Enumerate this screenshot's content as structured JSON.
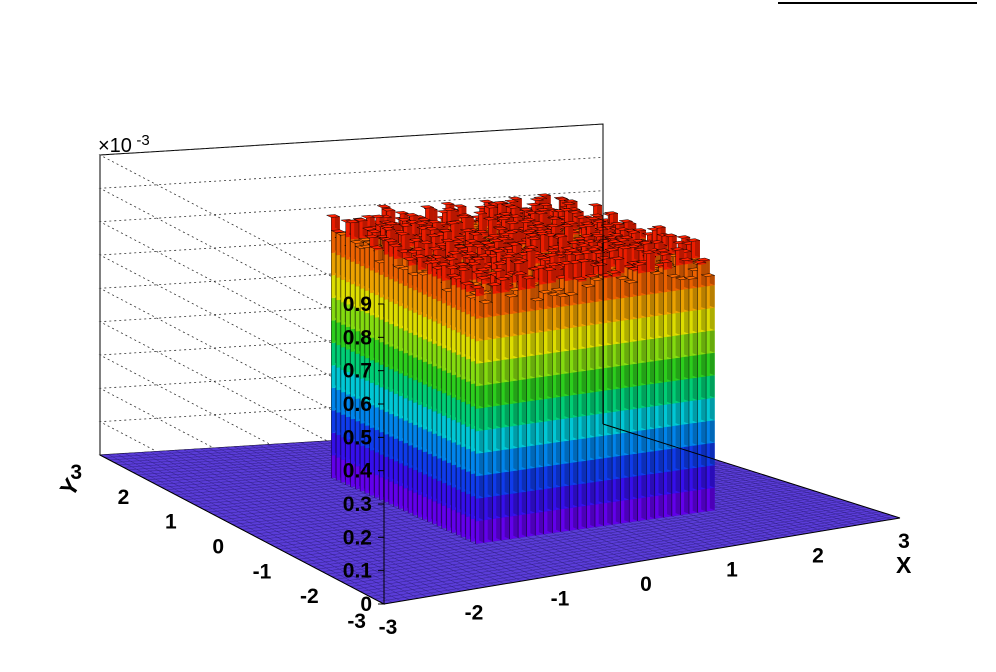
{
  "chart_data": {
    "type": "lego3d",
    "title": "",
    "xlabel": "X",
    "ylabel": "Y",
    "zlabel": "",
    "xlim": [
      -3,
      3
    ],
    "ylim": [
      -3,
      3
    ],
    "zlim": [
      0,
      0.0009
    ],
    "z_multiplier_base": "×10",
    "z_multiplier_exp": "-3",
    "x_ticks": [
      "-3",
      "-2",
      "-1",
      "0",
      "1",
      "2",
      "3"
    ],
    "y_ticks": [
      "-3",
      "-2",
      "-1",
      "0",
      "1",
      "2",
      "3"
    ],
    "z_ticks": [
      "0",
      "0.1",
      "0.2",
      "0.3",
      "0.4",
      "0.5",
      "0.6",
      "0.7",
      "0.8",
      "0.9"
    ],
    "grid": true,
    "bins_per_axis": 60,
    "plateau": {
      "x_range": [
        -1.1,
        1.7
      ],
      "y_range": [
        -1.5,
        1.6
      ],
      "mean_height": 0.00075,
      "fluctuation": 5e-05,
      "floor_height": 3.5e-06
    },
    "colormap": [
      "#6a00ff",
      "#3a10ff",
      "#1040ff",
      "#0090ff",
      "#00d8e8",
      "#00e080",
      "#30e020",
      "#90ee10",
      "#f0f000",
      "#ffb000",
      "#ff6a00",
      "#ff2000"
    ]
  }
}
